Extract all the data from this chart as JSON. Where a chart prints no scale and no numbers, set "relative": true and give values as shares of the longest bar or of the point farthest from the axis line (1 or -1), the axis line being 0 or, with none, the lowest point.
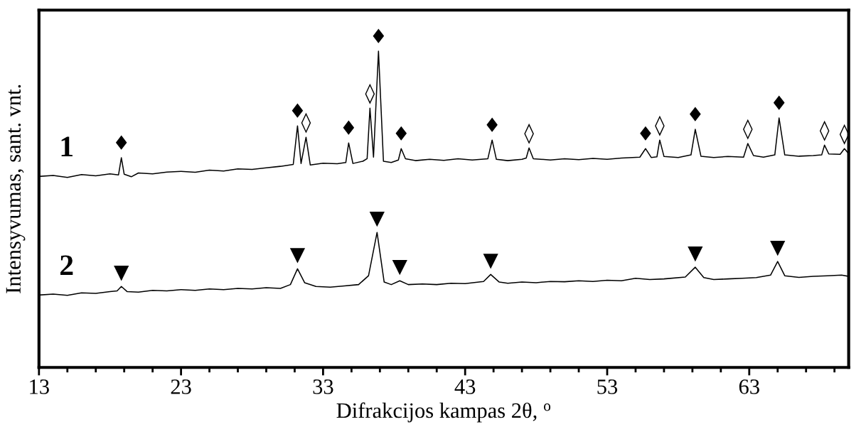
{
  "chart_data": {
    "type": "line",
    "xlabel": "Difrakcijos kampas 2θ, $^{o}$",
    "ylabel": "Intensyvumas, sant. vnt.",
    "relative": true,
    "legend": false,
    "grid": false,
    "marker": "none",
    "line_style": "solid",
    "xlim": [
      13,
      70
    ],
    "xticks": [
      13,
      {
        "value": 15,
        "label": null
      },
      {
        "value": 17,
        "label": null
      },
      {
        "value": 19,
        "label": null
      },
      {
        "value": 21,
        "label": null
      },
      23,
      {
        "value": 25,
        "label": null
      },
      {
        "value": 27,
        "label": null
      },
      {
        "value": 29,
        "label": null
      },
      {
        "value": 31,
        "label": null
      },
      33,
      {
        "value": 35,
        "label": null
      },
      {
        "value": 37,
        "label": null
      },
      {
        "value": 39,
        "label": null
      },
      {
        "value": 41,
        "label": null
      },
      43,
      {
        "value": 45,
        "label": null
      },
      {
        "value": 47,
        "label": null
      },
      {
        "value": 49,
        "label": null
      },
      {
        "value": 51,
        "label": null
      },
      53,
      {
        "value": 55,
        "label": null
      },
      {
        "value": 57,
        "label": null
      },
      {
        "value": 59,
        "label": null
      },
      {
        "value": 61,
        "label": null
      },
      63,
      {
        "value": 65,
        "label": null
      },
      {
        "value": 67,
        "label": null
      },
      {
        "value": 69,
        "label": null
      }
    ],
    "series": [
      {
        "name": "1",
        "color": "#000000",
        "x": [
          13,
          14,
          15,
          16,
          17,
          18,
          18.6,
          18.8,
          19.0,
          19.5,
          20,
          21,
          22,
          23,
          24,
          25,
          26,
          27,
          28,
          29,
          30,
          30.9,
          31.2,
          31.45,
          31.8,
          32.1,
          33,
          34,
          34.6,
          34.8,
          35.1,
          35.8,
          36.1,
          36.3,
          36.55,
          36.9,
          37.25,
          37.8,
          38.3,
          38.5,
          38.8,
          39.5,
          40.5,
          41.5,
          42.5,
          43.5,
          44.6,
          44.9,
          45.2,
          46,
          47,
          47.3,
          47.5,
          47.8,
          49,
          50,
          51,
          52,
          53,
          54,
          55.3,
          55.7,
          56.1,
          56.5,
          56.7,
          57.0,
          58,
          58.9,
          59.2,
          59.6,
          60.5,
          61.5,
          62.6,
          62.9,
          63.3,
          64,
          64.8,
          65.1,
          65.5,
          66.5,
          67.5,
          68.1,
          68.3,
          68.6,
          69.4,
          69.7,
          70
        ],
        "values": [
          0.604,
          0.607,
          0.601,
          0.61,
          0.606,
          0.612,
          0.609,
          0.663,
          0.611,
          0.603,
          0.615,
          0.612,
          0.618,
          0.62,
          0.617,
          0.624,
          0.621,
          0.628,
          0.626,
          0.631,
          0.636,
          0.642,
          0.764,
          0.645,
          0.728,
          0.64,
          0.646,
          0.644,
          0.648,
          0.71,
          0.645,
          0.652,
          0.66,
          0.82,
          0.665,
          1.0,
          0.652,
          0.648,
          0.656,
          0.692,
          0.66,
          0.654,
          0.658,
          0.655,
          0.66,
          0.656,
          0.66,
          0.719,
          0.658,
          0.654,
          0.658,
          0.662,
          0.694,
          0.66,
          0.656,
          0.66,
          0.657,
          0.661,
          0.658,
          0.662,
          0.665,
          0.692,
          0.664,
          0.666,
          0.719,
          0.667,
          0.664,
          0.672,
          0.753,
          0.668,
          0.664,
          0.667,
          0.665,
          0.708,
          0.67,
          0.665,
          0.672,
          0.789,
          0.672,
          0.668,
          0.67,
          0.672,
          0.703,
          0.675,
          0.674,
          0.692,
          0.676
        ]
      },
      {
        "name": "2",
        "color": "#000000",
        "x": [
          13,
          14,
          15,
          16,
          17,
          18,
          18.5,
          18.8,
          19.2,
          20,
          21,
          22,
          23,
          24,
          25,
          26,
          27,
          28,
          29,
          30,
          30.7,
          31.2,
          31.7,
          32.5,
          33.5,
          34.5,
          35.5,
          36.2,
          36.8,
          37.3,
          37.8,
          38.4,
          39,
          40,
          41,
          42,
          43,
          44.3,
          44.8,
          45.4,
          46,
          47,
          48,
          49,
          50,
          51,
          52,
          53,
          54,
          55,
          56,
          57,
          58.5,
          59.2,
          59.8,
          60.5,
          61.5,
          62.5,
          63.5,
          64.5,
          65.0,
          65.5,
          66.5,
          67.5,
          68.5,
          69.5,
          70
        ],
        "values": [
          0.229,
          0.232,
          0.228,
          0.236,
          0.234,
          0.24,
          0.242,
          0.256,
          0.24,
          0.238,
          0.244,
          0.242,
          0.246,
          0.244,
          0.248,
          0.246,
          0.25,
          0.248,
          0.252,
          0.25,
          0.262,
          0.312,
          0.268,
          0.256,
          0.254,
          0.258,
          0.262,
          0.29,
          0.427,
          0.27,
          0.262,
          0.274,
          0.262,
          0.264,
          0.262,
          0.266,
          0.265,
          0.272,
          0.294,
          0.27,
          0.266,
          0.27,
          0.268,
          0.272,
          0.271,
          0.274,
          0.272,
          0.276,
          0.274,
          0.282,
          0.278,
          0.28,
          0.286,
          0.317,
          0.284,
          0.278,
          0.28,
          0.282,
          0.284,
          0.292,
          0.335,
          0.29,
          0.285,
          0.288,
          0.29,
          0.292,
          0.288
        ]
      }
    ],
    "annotations": [
      {
        "text": "♦",
        "x": 18.8,
        "y": 0.663
      },
      {
        "text": "♦",
        "x": 31.2,
        "y": 0.764
      },
      {
        "text": "◊",
        "x": 31.8,
        "y": 0.728
      },
      {
        "text": "♦",
        "x": 34.8,
        "y": 0.71
      },
      {
        "text": "◊",
        "x": 36.3,
        "y": 0.82
      },
      {
        "text": "♦",
        "x": 36.9,
        "y": 1.0
      },
      {
        "text": "♦",
        "x": 38.5,
        "y": 0.692
      },
      {
        "text": "♦",
        "x": 44.9,
        "y": 0.719
      },
      {
        "text": "◊",
        "x": 47.5,
        "y": 0.694
      },
      {
        "text": "♦",
        "x": 55.7,
        "y": 0.692
      },
      {
        "text": "◊",
        "x": 56.7,
        "y": 0.719
      },
      {
        "text": "♦",
        "x": 59.2,
        "y": 0.753
      },
      {
        "text": "◊",
        "x": 62.9,
        "y": 0.708
      },
      {
        "text": "♦",
        "x": 65.1,
        "y": 0.789
      },
      {
        "text": "◊",
        "x": 68.3,
        "y": 0.703
      },
      {
        "text": "◊",
        "x": 69.7,
        "y": 0.692
      },
      {
        "text": "▼",
        "x": 18.8,
        "y": 0.256
      },
      {
        "text": "▼",
        "x": 31.2,
        "y": 0.312
      },
      {
        "text": "▼",
        "x": 36.8,
        "y": 0.427
      },
      {
        "text": "▼",
        "x": 38.4,
        "y": 0.274
      },
      {
        "text": "▼",
        "x": 44.8,
        "y": 0.294
      },
      {
        "text": "▼",
        "x": 59.2,
        "y": 0.317
      },
      {
        "text": "▼",
        "x": 65.0,
        "y": 0.335
      }
    ]
  }
}
